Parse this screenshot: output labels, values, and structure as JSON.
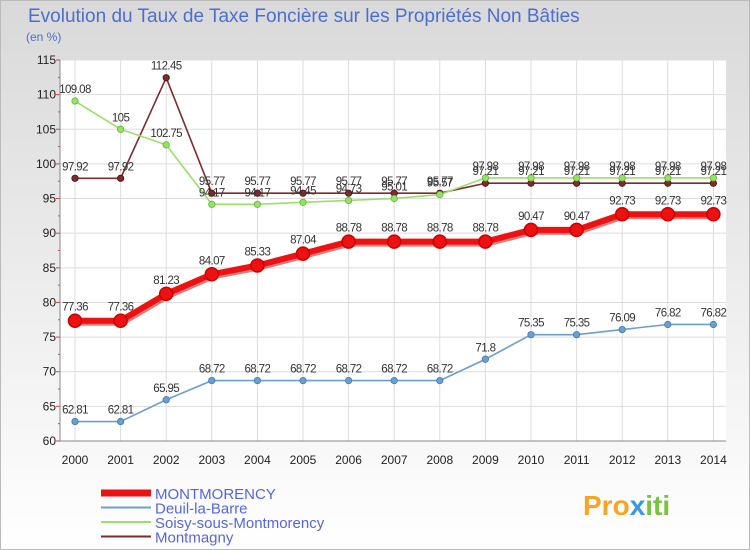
{
  "chart_data": {
    "type": "line",
    "title": "Evolution du Taux de Taxe Foncière sur les Propriétés Non Bâties",
    "subtitle": "(en %)",
    "xlabel": "",
    "ylabel": "",
    "ylim": [
      60,
      115
    ],
    "yticks": [
      60,
      65,
      70,
      75,
      80,
      85,
      90,
      95,
      100,
      105,
      110,
      115
    ],
    "grid": true,
    "legend_position": "bottom-left",
    "categories": [
      "2000",
      "2001",
      "2002",
      "2003",
      "2004",
      "2005",
      "2006",
      "2007",
      "2008",
      "2009",
      "2010",
      "2011",
      "2012",
      "2013",
      "2014"
    ],
    "series": [
      {
        "name": "MONTMORENCY",
        "color": "#ee1111",
        "values": [
          77.36,
          77.36,
          81.23,
          84.07,
          85.33,
          87.04,
          88.78,
          88.78,
          88.78,
          88.78,
          90.47,
          90.47,
          92.73,
          92.73,
          92.73
        ],
        "labels": [
          "77.36",
          "77.36",
          "81.23",
          "84.07",
          "85.33",
          "87.04",
          "88.78",
          "88.78",
          "88.78",
          "88.78",
          "90.47",
          "90.47",
          "92.73",
          "92.73",
          "92.73"
        ]
      },
      {
        "name": "Deuil-la-Barre",
        "color": "#6d9fcc",
        "values": [
          62.81,
          62.81,
          65.95,
          68.72,
          68.72,
          68.72,
          68.72,
          68.72,
          68.72,
          71.8,
          75.35,
          75.35,
          76.09,
          76.82,
          76.82
        ],
        "labels": [
          "62.81",
          "62.81",
          "65.95",
          "68.72",
          "68.72",
          "68.72",
          "68.72",
          "68.72",
          "68.72",
          "71.8",
          "75.35",
          "75.35",
          "76.09",
          "76.82",
          "76.82"
        ]
      },
      {
        "name": "Soisy-sous-Montmorency",
        "color": "#99e06a",
        "values": [
          109.08,
          105,
          102.75,
          94.17,
          94.17,
          94.45,
          94.73,
          95.01,
          95.57,
          97.98,
          97.98,
          97.98,
          97.98,
          97.98,
          97.98
        ],
        "labels": [
          "109.08",
          "105",
          "102.75",
          "94.17",
          "94.17",
          "94.45",
          "94.73",
          "95.01",
          "95.57",
          "97.98",
          "97.98",
          "97.98",
          "97.98",
          "97.98",
          "97.98"
        ]
      },
      {
        "name": "Montmagny",
        "color": "#7b2d2d",
        "values": [
          97.92,
          97.92,
          112.45,
          95.77,
          95.77,
          95.77,
          95.77,
          95.77,
          95.77,
          97.21,
          97.21,
          97.21,
          97.21,
          97.21,
          97.21
        ],
        "labels": [
          "97.92",
          "97.92",
          "112.45",
          "95.77",
          "95.77",
          "95.77",
          "95.77",
          "95.77",
          "95.77",
          "97.21",
          "97.21",
          "97.21",
          "97.21",
          "97.21",
          "97.21"
        ]
      }
    ]
  },
  "logo": {
    "text_a": "Pro",
    "text_x": "x",
    "text_b": "iti"
  }
}
